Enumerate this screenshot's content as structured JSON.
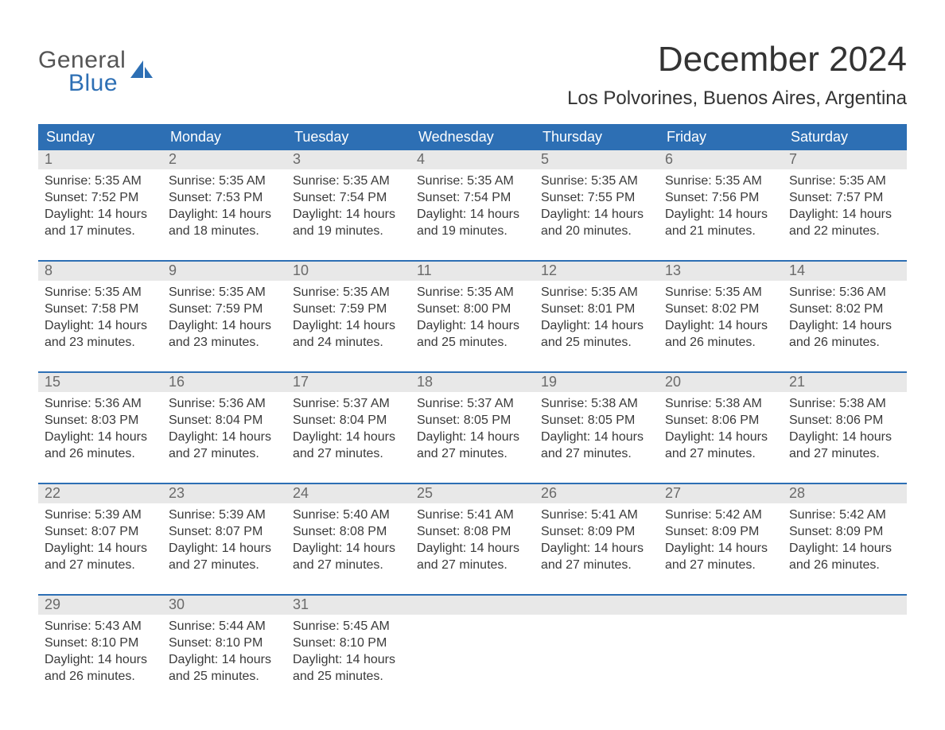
{
  "logo": {
    "top": "General",
    "bottom": "Blue",
    "icon_color": "#2d6fb4",
    "top_color": "#555555",
    "bottom_color": "#2d6fb4"
  },
  "title": "December 2024",
  "location": "Los Polvorines, Buenos Aires, Argentina",
  "colors": {
    "header_bg": "#2d6fb4",
    "header_text": "#ffffff",
    "daynum_bg": "#e8e8e8",
    "daynum_text": "#6a6a6a",
    "body_text": "#3a3a3a",
    "week_border": "#2d6fb4",
    "page_bg": "#ffffff"
  },
  "weekdays": [
    "Sunday",
    "Monday",
    "Tuesday",
    "Wednesday",
    "Thursday",
    "Friday",
    "Saturday"
  ],
  "weeks": [
    [
      {
        "n": "1",
        "sunrise": "Sunrise: 5:35 AM",
        "sunset": "Sunset: 7:52 PM",
        "day1": "Daylight: 14 hours",
        "day2": "and 17 minutes."
      },
      {
        "n": "2",
        "sunrise": "Sunrise: 5:35 AM",
        "sunset": "Sunset: 7:53 PM",
        "day1": "Daylight: 14 hours",
        "day2": "and 18 minutes."
      },
      {
        "n": "3",
        "sunrise": "Sunrise: 5:35 AM",
        "sunset": "Sunset: 7:54 PM",
        "day1": "Daylight: 14 hours",
        "day2": "and 19 minutes."
      },
      {
        "n": "4",
        "sunrise": "Sunrise: 5:35 AM",
        "sunset": "Sunset: 7:54 PM",
        "day1": "Daylight: 14 hours",
        "day2": "and 19 minutes."
      },
      {
        "n": "5",
        "sunrise": "Sunrise: 5:35 AM",
        "sunset": "Sunset: 7:55 PM",
        "day1": "Daylight: 14 hours",
        "day2": "and 20 minutes."
      },
      {
        "n": "6",
        "sunrise": "Sunrise: 5:35 AM",
        "sunset": "Sunset: 7:56 PM",
        "day1": "Daylight: 14 hours",
        "day2": "and 21 minutes."
      },
      {
        "n": "7",
        "sunrise": "Sunrise: 5:35 AM",
        "sunset": "Sunset: 7:57 PM",
        "day1": "Daylight: 14 hours",
        "day2": "and 22 minutes."
      }
    ],
    [
      {
        "n": "8",
        "sunrise": "Sunrise: 5:35 AM",
        "sunset": "Sunset: 7:58 PM",
        "day1": "Daylight: 14 hours",
        "day2": "and 23 minutes."
      },
      {
        "n": "9",
        "sunrise": "Sunrise: 5:35 AM",
        "sunset": "Sunset: 7:59 PM",
        "day1": "Daylight: 14 hours",
        "day2": "and 23 minutes."
      },
      {
        "n": "10",
        "sunrise": "Sunrise: 5:35 AM",
        "sunset": "Sunset: 7:59 PM",
        "day1": "Daylight: 14 hours",
        "day2": "and 24 minutes."
      },
      {
        "n": "11",
        "sunrise": "Sunrise: 5:35 AM",
        "sunset": "Sunset: 8:00 PM",
        "day1": "Daylight: 14 hours",
        "day2": "and 25 minutes."
      },
      {
        "n": "12",
        "sunrise": "Sunrise: 5:35 AM",
        "sunset": "Sunset: 8:01 PM",
        "day1": "Daylight: 14 hours",
        "day2": "and 25 minutes."
      },
      {
        "n": "13",
        "sunrise": "Sunrise: 5:35 AM",
        "sunset": "Sunset: 8:02 PM",
        "day1": "Daylight: 14 hours",
        "day2": "and 26 minutes."
      },
      {
        "n": "14",
        "sunrise": "Sunrise: 5:36 AM",
        "sunset": "Sunset: 8:02 PM",
        "day1": "Daylight: 14 hours",
        "day2": "and 26 minutes."
      }
    ],
    [
      {
        "n": "15",
        "sunrise": "Sunrise: 5:36 AM",
        "sunset": "Sunset: 8:03 PM",
        "day1": "Daylight: 14 hours",
        "day2": "and 26 minutes."
      },
      {
        "n": "16",
        "sunrise": "Sunrise: 5:36 AM",
        "sunset": "Sunset: 8:04 PM",
        "day1": "Daylight: 14 hours",
        "day2": "and 27 minutes."
      },
      {
        "n": "17",
        "sunrise": "Sunrise: 5:37 AM",
        "sunset": "Sunset: 8:04 PM",
        "day1": "Daylight: 14 hours",
        "day2": "and 27 minutes."
      },
      {
        "n": "18",
        "sunrise": "Sunrise: 5:37 AM",
        "sunset": "Sunset: 8:05 PM",
        "day1": "Daylight: 14 hours",
        "day2": "and 27 minutes."
      },
      {
        "n": "19",
        "sunrise": "Sunrise: 5:38 AM",
        "sunset": "Sunset: 8:05 PM",
        "day1": "Daylight: 14 hours",
        "day2": "and 27 minutes."
      },
      {
        "n": "20",
        "sunrise": "Sunrise: 5:38 AM",
        "sunset": "Sunset: 8:06 PM",
        "day1": "Daylight: 14 hours",
        "day2": "and 27 minutes."
      },
      {
        "n": "21",
        "sunrise": "Sunrise: 5:38 AM",
        "sunset": "Sunset: 8:06 PM",
        "day1": "Daylight: 14 hours",
        "day2": "and 27 minutes."
      }
    ],
    [
      {
        "n": "22",
        "sunrise": "Sunrise: 5:39 AM",
        "sunset": "Sunset: 8:07 PM",
        "day1": "Daylight: 14 hours",
        "day2": "and 27 minutes."
      },
      {
        "n": "23",
        "sunrise": "Sunrise: 5:39 AM",
        "sunset": "Sunset: 8:07 PM",
        "day1": "Daylight: 14 hours",
        "day2": "and 27 minutes."
      },
      {
        "n": "24",
        "sunrise": "Sunrise: 5:40 AM",
        "sunset": "Sunset: 8:08 PM",
        "day1": "Daylight: 14 hours",
        "day2": "and 27 minutes."
      },
      {
        "n": "25",
        "sunrise": "Sunrise: 5:41 AM",
        "sunset": "Sunset: 8:08 PM",
        "day1": "Daylight: 14 hours",
        "day2": "and 27 minutes."
      },
      {
        "n": "26",
        "sunrise": "Sunrise: 5:41 AM",
        "sunset": "Sunset: 8:09 PM",
        "day1": "Daylight: 14 hours",
        "day2": "and 27 minutes."
      },
      {
        "n": "27",
        "sunrise": "Sunrise: 5:42 AM",
        "sunset": "Sunset: 8:09 PM",
        "day1": "Daylight: 14 hours",
        "day2": "and 27 minutes."
      },
      {
        "n": "28",
        "sunrise": "Sunrise: 5:42 AM",
        "sunset": "Sunset: 8:09 PM",
        "day1": "Daylight: 14 hours",
        "day2": "and 26 minutes."
      }
    ],
    [
      {
        "n": "29",
        "sunrise": "Sunrise: 5:43 AM",
        "sunset": "Sunset: 8:10 PM",
        "day1": "Daylight: 14 hours",
        "day2": "and 26 minutes."
      },
      {
        "n": "30",
        "sunrise": "Sunrise: 5:44 AM",
        "sunset": "Sunset: 8:10 PM",
        "day1": "Daylight: 14 hours",
        "day2": "and 25 minutes."
      },
      {
        "n": "31",
        "sunrise": "Sunrise: 5:45 AM",
        "sunset": "Sunset: 8:10 PM",
        "day1": "Daylight: 14 hours",
        "day2": "and 25 minutes."
      },
      {
        "empty": true
      },
      {
        "empty": true
      },
      {
        "empty": true
      },
      {
        "empty": true
      }
    ]
  ]
}
